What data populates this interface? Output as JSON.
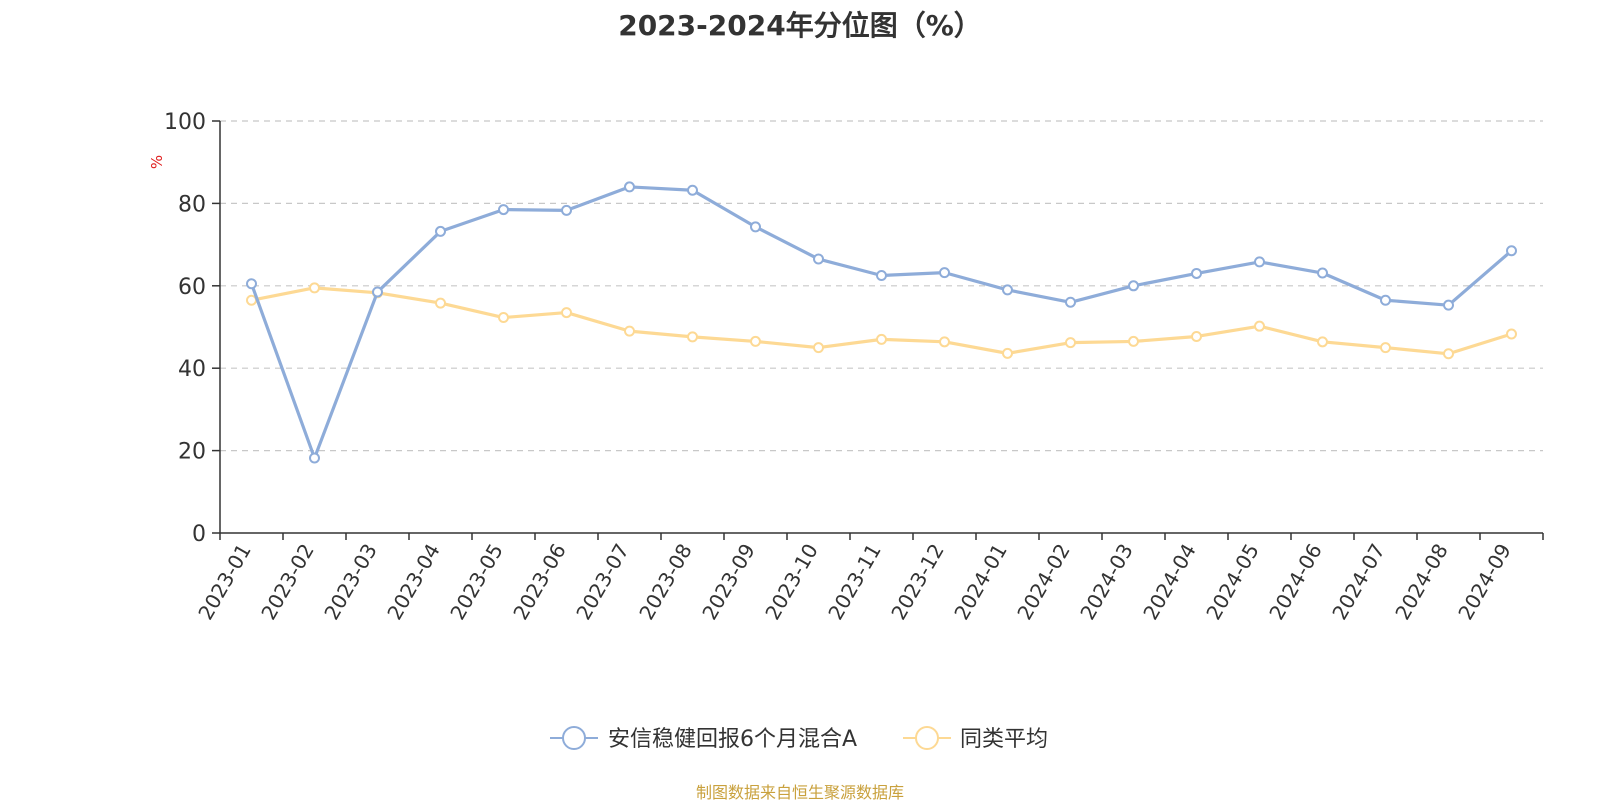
{
  "title": "2023-2024年分位图（%）",
  "source": "制图数据来自恒生聚源数据库",
  "chart_data": {
    "type": "line",
    "ylabel": "%",
    "ylim": [
      0,
      100
    ],
    "yticks": [
      0,
      20,
      40,
      60,
      80,
      100
    ],
    "grid": true,
    "legend_position": "bottom-center",
    "categories": [
      "2023-01",
      "2023-02",
      "2023-03",
      "2023-04",
      "2023-05",
      "2023-06",
      "2023-07",
      "2023-08",
      "2023-09",
      "2023-10",
      "2023-11",
      "2023-12",
      "2024-01",
      "2024-02",
      "2024-03",
      "2024-04",
      "2024-05",
      "2024-06",
      "2024-07",
      "2024-08",
      "2024-09"
    ],
    "series": [
      {
        "name": "安信稳健回报6个月混合A",
        "color": "#8eacd9",
        "values": [
          60.5,
          18.2,
          58.5,
          73.2,
          78.5,
          78.3,
          84.0,
          83.2,
          74.3,
          66.5,
          62.5,
          63.2,
          59.0,
          56.0,
          60.0,
          63.0,
          65.8,
          63.1,
          56.5,
          55.3,
          68.5
        ]
      },
      {
        "name": "同类平均",
        "color": "#fdd994",
        "values": [
          56.5,
          59.5,
          58.3,
          55.8,
          52.3,
          53.5,
          49.0,
          47.6,
          46.5,
          45.0,
          47.0,
          46.4,
          43.6,
          46.2,
          46.5,
          47.7,
          50.2,
          46.4,
          45.0,
          43.5,
          48.3
        ]
      }
    ]
  }
}
